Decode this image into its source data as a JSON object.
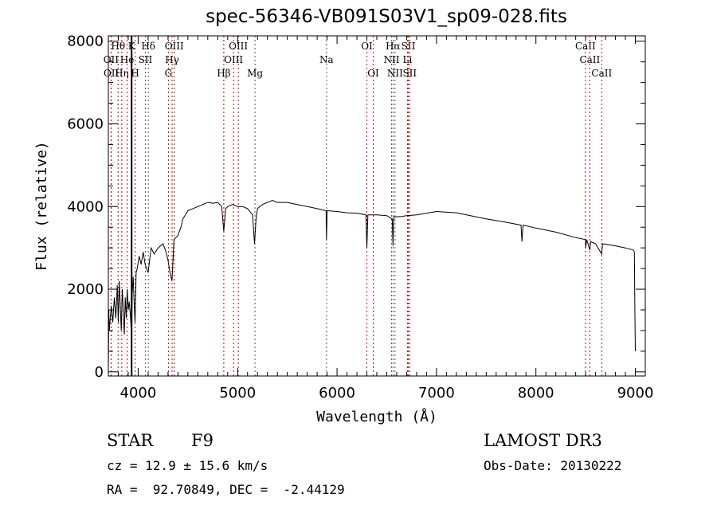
{
  "chart_data": {
    "type": "line",
    "title": "spec-56346-VB091S03V1_sp09-028.fits",
    "xlabel": "Wavelength (Å)",
    "ylabel": "Flux (relative)",
    "xlim": [
      3700,
      9100
    ],
    "ylim": [
      -100,
      8130
    ],
    "xticks": [
      4000,
      5000,
      6000,
      7000,
      8000,
      9000
    ],
    "yticks": [
      0,
      2000,
      4000,
      6000,
      8000
    ],
    "series": [
      {
        "name": "flux",
        "x": [
          3700,
          3705,
          3710,
          3730,
          3745,
          3760,
          3775,
          3790,
          3800,
          3810,
          3820,
          3830,
          3840,
          3850,
          3860,
          3870,
          3880,
          3890,
          3900,
          3910,
          3920,
          3933,
          3940,
          3950,
          3960,
          3968,
          3980,
          3990,
          4010,
          4030,
          4050,
          4070,
          4100,
          4130,
          4160,
          4200,
          4250,
          4280,
          4300,
          4320,
          4340,
          4360,
          4400,
          4430,
          4450,
          4500,
          4550,
          4600,
          4650,
          4700,
          4750,
          4800,
          4840,
          4861,
          4880,
          4900,
          4950,
          5000,
          5050,
          5100,
          5150,
          5170,
          5185,
          5200,
          5250,
          5300,
          5350,
          5400,
          5500,
          5600,
          5700,
          5800,
          5890,
          5894,
          5900,
          6000,
          6100,
          6200,
          6290,
          6300,
          6310,
          6400,
          6500,
          6555,
          6563,
          6570,
          6650,
          6700,
          6800,
          7000,
          7200,
          7400,
          7500,
          7700,
          7850,
          7860,
          7870,
          8000,
          8200,
          8400,
          8498,
          8500,
          8510,
          8542,
          8550,
          8600,
          8662,
          8670,
          8800,
          8900,
          8980,
          8990,
          8995,
          9000
        ],
        "y": [
          0,
          1500,
          1000,
          1600,
          1200,
          1800,
          1300,
          2100,
          1200,
          2200,
          1600,
          1000,
          2000,
          1500,
          900,
          1800,
          1300,
          2000,
          1500,
          1700,
          1400,
          900,
          1900,
          2300,
          1600,
          1200,
          2400,
          2500,
          2800,
          2600,
          2900,
          2600,
          2400,
          3000,
          2850,
          3000,
          3100,
          2900,
          2700,
          2400,
          2200,
          3200,
          3300,
          3500,
          3700,
          3900,
          3950,
          4000,
          4050,
          4100,
          4080,
          4100,
          4000,
          3400,
          3950,
          4000,
          4050,
          4000,
          4000,
          3950,
          3800,
          3100,
          3700,
          3950,
          4050,
          4100,
          4150,
          4100,
          4100,
          4050,
          4000,
          3950,
          3900,
          3200,
          3900,
          3880,
          3850,
          3840,
          3800,
          3000,
          3800,
          3800,
          3780,
          3700,
          3050,
          3750,
          3760,
          3780,
          3800,
          3880,
          3850,
          3750,
          3700,
          3620,
          3550,
          3150,
          3550,
          3480,
          3380,
          3250,
          3200,
          3000,
          3200,
          2950,
          3150,
          3100,
          2850,
          3100,
          3050,
          3000,
          2950,
          2900,
          1500,
          500
        ]
      }
    ]
  },
  "lines": [
    {
      "label": "OII",
      "w": 3727,
      "row": 2,
      "color": "#c00000"
    },
    {
      "label": "OII",
      "w": 3729,
      "row": 3,
      "color": "#c00000"
    },
    {
      "label": "Hθ",
      "w": 3798,
      "row": 1,
      "color": "#c00000"
    },
    {
      "label": "Hη",
      "w": 3835,
      "row": 3,
      "color": "#c00000"
    },
    {
      "label": "He",
      "w": 3889,
      "row": 2,
      "color": "#c00000"
    },
    {
      "label": "K",
      "w": 3934,
      "row": 1,
      "color": "#000000"
    },
    {
      "label": "H",
      "w": 3969,
      "row": 3,
      "color": "#c00000"
    },
    {
      "label": "SII",
      "w": 4072,
      "row": 2,
      "color": "#555555"
    },
    {
      "label": "Hδ",
      "w": 4102,
      "row": 1,
      "color": "#555555"
    },
    {
      "label": "G",
      "w": 4304,
      "row": 3,
      "color": "#c00000"
    },
    {
      "label": "Hγ",
      "w": 4341,
      "row": 2,
      "color": "#c00000"
    },
    {
      "label": "OIII",
      "w": 4363,
      "row": 1,
      "color": "#c00000"
    },
    {
      "label": "Hβ",
      "w": 4861,
      "row": 3,
      "color": "#c00000"
    },
    {
      "label": "OIII",
      "w": 4959,
      "row": 2,
      "color": "#c00000"
    },
    {
      "label": "OIII",
      "w": 5007,
      "row": 1,
      "color": "#c00000"
    },
    {
      "label": "Mg",
      "w": 5175,
      "row": 3,
      "color": "#555555"
    },
    {
      "label": "Na",
      "w": 5894,
      "row": 2,
      "color": "#555555"
    },
    {
      "label": "OI",
      "w": 6300,
      "row": 1,
      "color": "#c00000"
    },
    {
      "label": "OI",
      "w": 6364,
      "row": 3,
      "color": "#c00000"
    },
    {
      "label": "NII",
      "w": 6548,
      "row": 2,
      "color": "#555555"
    },
    {
      "label": "Hα",
      "w": 6563,
      "row": 1,
      "color": "#555555"
    },
    {
      "label": "NII",
      "w": 6583,
      "row": 3,
      "color": "#555555"
    },
    {
      "label": "Li",
      "w": 6708,
      "row": 2,
      "color": "#c00000"
    },
    {
      "label": "SII",
      "w": 6717,
      "row": 1,
      "color": "#c00000"
    },
    {
      "label": "SII",
      "w": 6731,
      "row": 3,
      "color": "#c00000"
    },
    {
      "label": "CaII",
      "w": 8498,
      "row": 1,
      "color": "#c00000"
    },
    {
      "label": "CaII",
      "w": 8542,
      "row": 2,
      "color": "#c00000"
    },
    {
      "label": "CaII",
      "w": 8662,
      "row": 3,
      "color": "#c00000"
    }
  ],
  "info": {
    "class": "STAR",
    "subclass": "F9",
    "cz": "cz = 12.9 ± 15.6 km/s",
    "radec": "RA =  92.70849, DEC =  -2.44129",
    "survey": "LAMOST DR3",
    "obsdate": "Obs-Date: 20130222"
  }
}
